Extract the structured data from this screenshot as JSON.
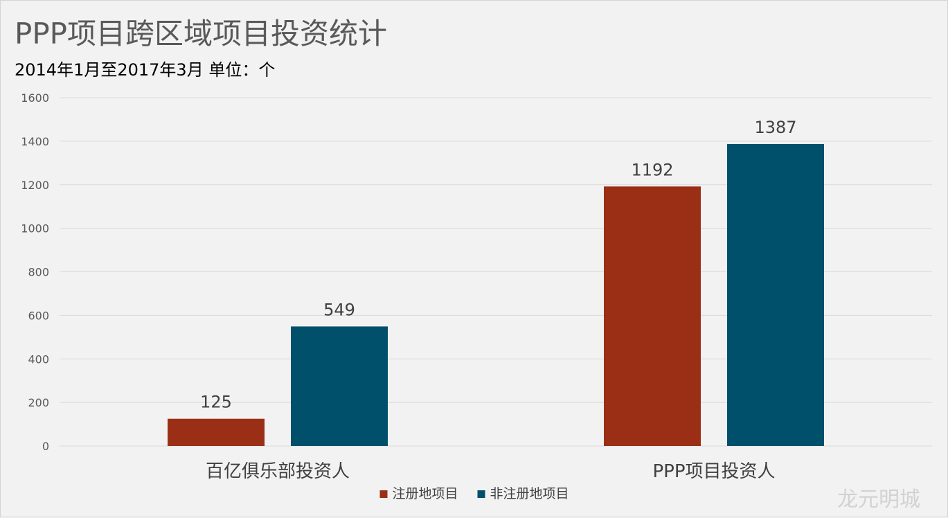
{
  "header": {
    "title": "PPP项目跨区域项目投资统计",
    "subtitle": "2014年1月至2017年3月  单位：个"
  },
  "watermark": "龙元明城",
  "chart_data": {
    "type": "bar",
    "title": "PPP项目跨区域项目投资统计",
    "subtitle": "2014年1月至2017年3月  单位：个",
    "categories": [
      "百亿俱乐部投资人",
      "PPP项目投资人"
    ],
    "series": [
      {
        "name": "注册地项目",
        "values": [
          125,
          1192
        ],
        "color": "#9b2f15"
      },
      {
        "name": "非注册地项目",
        "values": [
          549,
          1387
        ],
        "color": "#00506b"
      }
    ],
    "yticks": [
      "0",
      "200",
      "400",
      "600",
      "800",
      "1000",
      "1200",
      "1400",
      "1600"
    ],
    "ylim": [
      0,
      1600
    ],
    "xlabel": "",
    "ylabel": "",
    "grid": true,
    "legend_position": "bottom",
    "data_labels": true
  }
}
